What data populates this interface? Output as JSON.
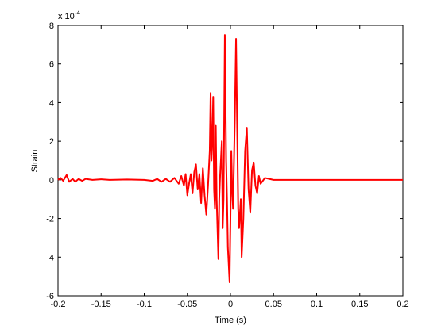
{
  "chart_data": {
    "type": "line",
    "xlabel": "Time (s)",
    "ylabel": "Strain",
    "exponent_label": {
      "base": "x 10",
      "power": "-4"
    },
    "xlim": [
      -0.2,
      0.2
    ],
    "xticks": [
      -0.2,
      -0.15,
      -0.1,
      -0.05,
      0,
      0.05,
      0.1,
      0.15,
      0.2
    ],
    "ylim": [
      -6,
      8
    ],
    "yticks": [
      -6,
      -4,
      -2,
      0,
      2,
      4,
      6,
      8
    ],
    "grid": false,
    "x": [
      -0.2,
      -0.197,
      -0.194,
      -0.19,
      -0.187,
      -0.183,
      -0.18,
      -0.176,
      -0.172,
      -0.168,
      -0.16,
      -0.15,
      -0.14,
      -0.12,
      -0.1,
      -0.09,
      -0.085,
      -0.08,
      -0.075,
      -0.07,
      -0.065,
      -0.06,
      -0.057,
      -0.054,
      -0.052,
      -0.05,
      -0.048,
      -0.046,
      -0.044,
      -0.042,
      -0.04,
      -0.038,
      -0.036,
      -0.034,
      -0.032,
      -0.03,
      -0.028,
      -0.026,
      -0.024,
      -0.023,
      -0.022,
      -0.021,
      -0.02,
      -0.019,
      -0.018,
      -0.017,
      -0.016,
      -0.014,
      -0.013,
      -0.012,
      -0.01,
      -0.009,
      -0.008,
      -0.0065,
      -0.005,
      -0.004,
      -0.003,
      -0.001,
      0,
      0.001,
      0.002,
      0.003,
      0.005,
      0.0065,
      0.008,
      0.009,
      0.01,
      0.012,
      0.013,
      0.015,
      0.017,
      0.019,
      0.021,
      0.023,
      0.025,
      0.027,
      0.029,
      0.031,
      0.033,
      0.035,
      0.04,
      0.045,
      0.05,
      0.1,
      0.2
    ],
    "series": [
      {
        "name": "Strain",
        "color": "#ff0000",
        "values": [
          0,
          0.1,
          -0.05,
          0.25,
          -0.1,
          0.05,
          -0.1,
          0.05,
          -0.05,
          0.05,
          0,
          0.03,
          0,
          0.02,
          0,
          -0.05,
          0.05,
          -0.1,
          0.05,
          -0.1,
          0.1,
          -0.2,
          0.2,
          -0.3,
          0.3,
          -0.8,
          -0.2,
          0.3,
          -0.7,
          0.4,
          0.8,
          -0.5,
          0.3,
          -1.2,
          0.6,
          -0.8,
          -1.8,
          -0.3,
          1.5,
          4.5,
          1,
          2,
          4.3,
          -0.5,
          -1.5,
          2.8,
          -1,
          -4.1,
          -1,
          0.2,
          2,
          -2.5,
          -1,
          7.5,
          1,
          -1,
          -3.5,
          -5.3,
          -2,
          1.5,
          -0.5,
          -1.5,
          3,
          7.3,
          2,
          -1.5,
          -2.5,
          -1,
          -4,
          -2,
          1.5,
          2.7,
          -0.5,
          -1.7,
          0.5,
          0.9,
          -0.3,
          -0.7,
          0.2,
          -0.2,
          0.1,
          0.05,
          0,
          0,
          0
        ]
      }
    ]
  }
}
